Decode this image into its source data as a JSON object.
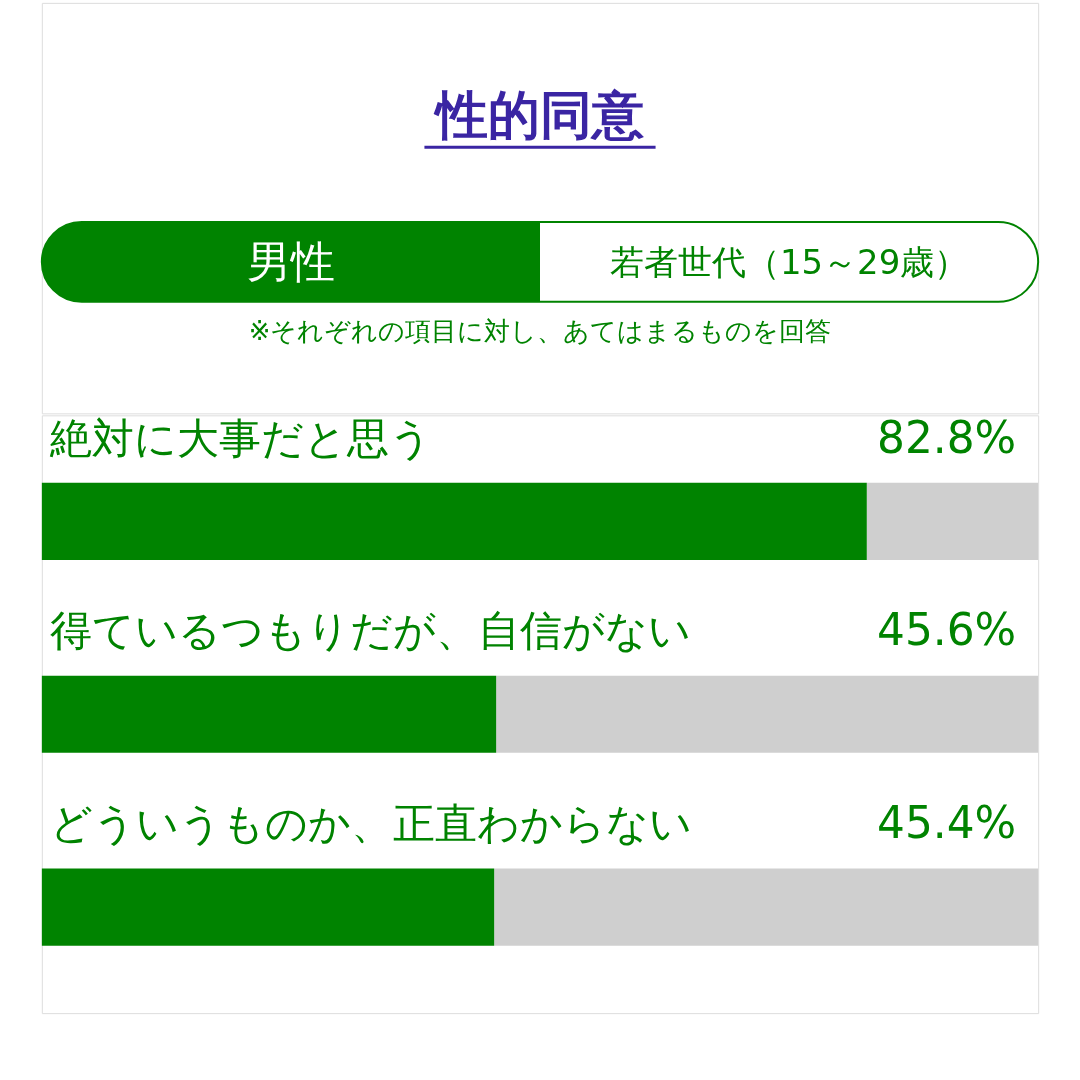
{
  "chart_data": {
    "type": "bar",
    "orientation": "horizontal",
    "title": "性的同意",
    "annotations": [
      "男性",
      "若者世代（15～29歳）",
      "※それぞれの項目に対し、あてはまるものを回答"
    ],
    "categories": [
      "絶対に大事だと思う",
      "得ているつもりだが、自信がない",
      "どういうものか、正直わからない"
    ],
    "series": [
      {
        "color": "#008300",
        "values": [
          82.8,
          45.6,
          45.4
        ],
        "value_labels": [
          "82.8%",
          "45.6%",
          "45.4%"
        ]
      }
    ],
    "xlim": [
      0,
      100
    ],
    "tick_labels": false
  }
}
